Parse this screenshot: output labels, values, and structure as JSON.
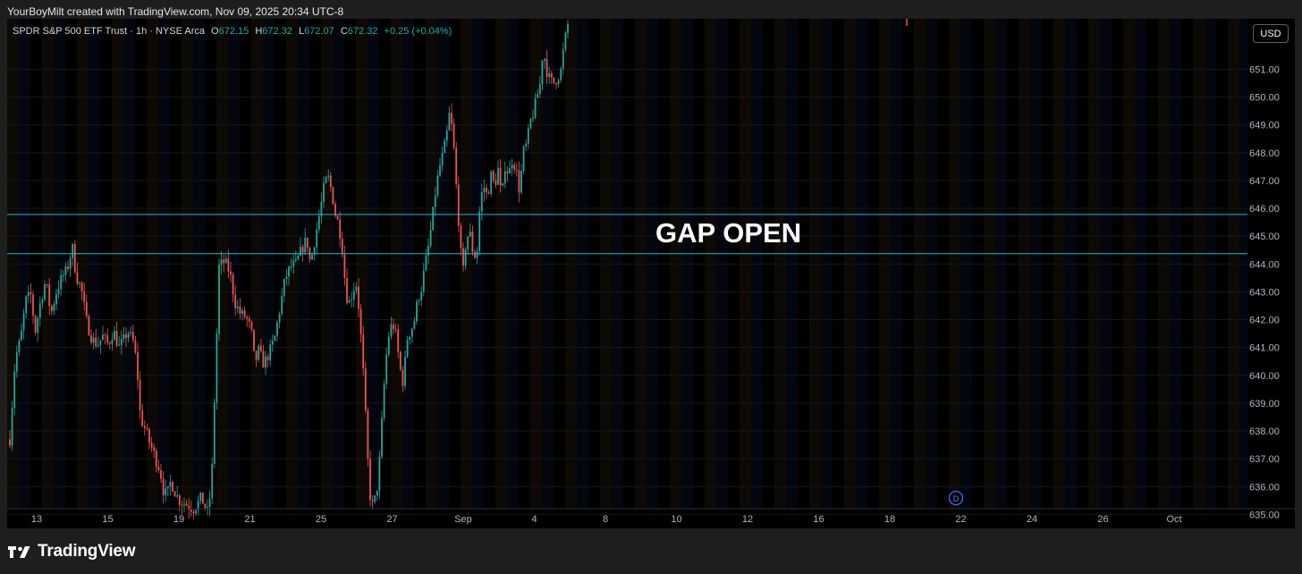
{
  "caption": "YourBoyMilt created with TradingView.com, Nov 09, 2025 20:34 UTC-8",
  "symbol": {
    "title": "SPDR S&P 500 ETF Trust · 1h · NYSE Arca",
    "open_label": "O",
    "open": "672.15",
    "high_label": "H",
    "high": "672.32",
    "low_label": "L",
    "low": "672.07",
    "close_label": "C",
    "close": "672.32",
    "change": "+0.25 (+0.04%)"
  },
  "currency_button": "USD",
  "brand": "TradingView",
  "marker_icon_label": "D",
  "colors": {
    "up": "#26a69a",
    "down": "#ef5350",
    "level": "#22b8cf",
    "bg": "#000000"
  },
  "chart_data": {
    "type": "candlestick",
    "ylim": [
      634.8,
      652.6
    ],
    "y_ticks": [
      "651.00",
      "650.00",
      "649.00",
      "648.00",
      "647.00",
      "646.00",
      "645.00",
      "644.00",
      "643.00",
      "642.00",
      "641.00",
      "640.00",
      "639.00",
      "638.00",
      "637.00",
      "636.00",
      "635.00"
    ],
    "x_ticks": [
      "13",
      "15",
      "19",
      "21",
      "25",
      "27",
      "Sep",
      "4",
      "8",
      "10",
      "12",
      "16",
      "18",
      "22",
      "24",
      "26",
      "Oct"
    ],
    "horizontal_levels": [
      {
        "label": "645.78",
        "value": 645.78
      },
      {
        "label": "644.37",
        "value": 644.37
      }
    ],
    "annotation": "GAP OPEN",
    "path": [
      [
        0,
        637.7
      ],
      [
        6,
        640.6
      ],
      [
        12,
        641.3
      ],
      [
        18,
        642.7
      ],
      [
        24,
        642.9
      ],
      [
        28,
        641.5
      ],
      [
        34,
        642.6
      ],
      [
        40,
        643.4
      ],
      [
        46,
        642.2
      ],
      [
        52,
        643.0
      ],
      [
        58,
        643.5
      ],
      [
        64,
        643.8
      ],
      [
        70,
        644.6
      ],
      [
        74,
        643.6
      ],
      [
        80,
        643.1
      ],
      [
        86,
        641.9
      ],
      [
        92,
        641.3
      ],
      [
        98,
        641.1
      ],
      [
        104,
        641.4
      ],
      [
        110,
        641.1
      ],
      [
        116,
        641.6
      ],
      [
        122,
        641.0
      ],
      [
        128,
        641.3
      ],
      [
        132,
        641.6
      ],
      [
        138,
        641.2
      ],
      [
        142,
        640.4
      ],
      [
        146,
        638.5
      ],
      [
        152,
        638.0
      ],
      [
        156,
        637.6
      ],
      [
        160,
        637.3
      ],
      [
        164,
        636.9
      ],
      [
        168,
        636.6
      ],
      [
        172,
        635.8
      ],
      [
        176,
        635.7
      ],
      [
        180,
        636.2
      ],
      [
        186,
        635.7
      ],
      [
        190,
        635.5
      ],
      [
        196,
        635.4
      ],
      [
        200,
        635.3
      ],
      [
        206,
        635.2
      ],
      [
        210,
        635.4
      ],
      [
        214,
        635.6
      ],
      [
        218,
        635.3
      ],
      [
        222,
        635.0
      ],
      [
        226,
        636.5
      ],
      [
        230,
        640.2
      ],
      [
        234,
        643.9
      ],
      [
        240,
        644.1
      ],
      [
        246,
        643.7
      ],
      [
        252,
        642.6
      ],
      [
        258,
        642.2
      ],
      [
        264,
        642.1
      ],
      [
        270,
        641.6
      ],
      [
        274,
        640.4
      ],
      [
        278,
        640.9
      ],
      [
        284,
        640.4
      ],
      [
        290,
        640.8
      ],
      [
        296,
        641.3
      ],
      [
        302,
        642.4
      ],
      [
        308,
        643.5
      ],
      [
        314,
        643.9
      ],
      [
        320,
        644.0
      ],
      [
        326,
        644.5
      ],
      [
        332,
        644.9
      ],
      [
        336,
        644.0
      ],
      [
        340,
        644.7
      ],
      [
        344,
        645.4
      ],
      [
        348,
        646.1
      ],
      [
        352,
        646.9
      ],
      [
        356,
        647.1
      ],
      [
        360,
        646.6
      ],
      [
        364,
        645.8
      ],
      [
        368,
        645.4
      ],
      [
        372,
        644.5
      ],
      [
        376,
        642.9
      ],
      [
        380,
        642.6
      ],
      [
        384,
        643.1
      ],
      [
        388,
        643.3
      ],
      [
        392,
        641.7
      ],
      [
        396,
        639.7
      ],
      [
        400,
        637.1
      ],
      [
        404,
        635.2
      ],
      [
        408,
        635.5
      ],
      [
        412,
        636.2
      ],
      [
        416,
        638.3
      ],
      [
        420,
        640.4
      ],
      [
        424,
        641.5
      ],
      [
        428,
        641.9
      ],
      [
        432,
        641.4
      ],
      [
        436,
        640.3
      ],
      [
        440,
        639.7
      ],
      [
        444,
        641.3
      ],
      [
        448,
        641.6
      ],
      [
        452,
        641.9
      ],
      [
        456,
        642.7
      ],
      [
        460,
        643.1
      ],
      [
        464,
        643.9
      ],
      [
        468,
        644.6
      ],
      [
        472,
        645.5
      ],
      [
        476,
        646.6
      ],
      [
        480,
        647.4
      ],
      [
        484,
        647.9
      ],
      [
        488,
        648.5
      ],
      [
        492,
        649.5
      ],
      [
        496,
        648.4
      ],
      [
        500,
        646.4
      ],
      [
        504,
        644.6
      ],
      [
        506,
        643.4
      ],
      [
        510,
        644.8
      ],
      [
        514,
        645.2
      ],
      [
        518,
        644.4
      ],
      [
        522,
        644.2
      ],
      [
        526,
        646.3
      ],
      [
        530,
        646.8
      ],
      [
        534,
        646.4
      ],
      [
        538,
        647.2
      ],
      [
        542,
        646.8
      ],
      [
        546,
        647.4
      ],
      [
        550,
        646.3
      ],
      [
        554,
        647.6
      ],
      [
        558,
        647.2
      ],
      [
        562,
        647.8
      ],
      [
        566,
        647.4
      ],
      [
        570,
        646.6
      ],
      [
        574,
        648.0
      ],
      [
        578,
        648.3
      ],
      [
        582,
        649.1
      ],
      [
        586,
        649.5
      ],
      [
        590,
        650.1
      ],
      [
        594,
        650.6
      ],
      [
        596,
        651.8
      ],
      [
        600,
        651.0
      ],
      [
        604,
        650.6
      ],
      [
        608,
        650.5
      ],
      [
        612,
        650.7
      ],
      [
        616,
        650.9
      ],
      [
        620,
        651.9
      ],
      [
        624,
        652.6
      ]
    ]
  }
}
